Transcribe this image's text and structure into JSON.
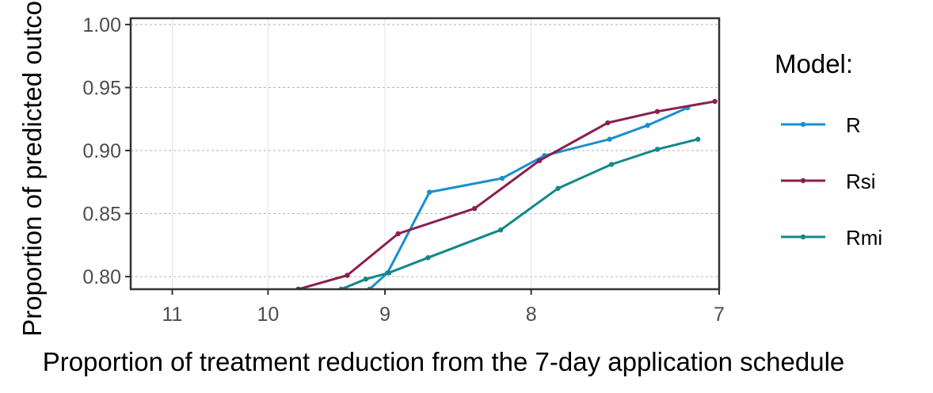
{
  "chart_data": {
    "type": "line",
    "xlabel": "Proportion of treatment reduction from the 7-day application schedule",
    "ylabel": "Proportion of predicted outcome",
    "x_scale": "reciprocal",
    "xlim": [
      11.5,
      7
    ],
    "ylim": [
      0.79,
      1.005
    ],
    "x_ticks": [
      "11",
      "10",
      "9",
      "8",
      "7"
    ],
    "y_ticks": [
      "0.80",
      "0.85",
      "0.90",
      "0.95",
      "1.00"
    ],
    "grid": true,
    "legend": {
      "title": "Model:",
      "position": "right"
    },
    "series": [
      {
        "name": "R",
        "color": "#1a8fce",
        "points": [
          [
            9.12,
            0.79
          ],
          [
            8.98,
            0.803
          ],
          [
            8.67,
            0.867
          ],
          [
            8.18,
            0.878
          ],
          [
            7.92,
            0.896
          ],
          [
            7.55,
            0.909
          ],
          [
            7.35,
            0.92
          ],
          [
            7.15,
            0.934
          ]
        ]
      },
      {
        "name": "Rsi",
        "color": "#8a1f4f",
        "points": [
          [
            9.72,
            0.79
          ],
          [
            9.3,
            0.801
          ],
          [
            8.9,
            0.834
          ],
          [
            8.36,
            0.854
          ],
          [
            7.95,
            0.892
          ],
          [
            7.56,
            0.922
          ],
          [
            7.3,
            0.931
          ],
          [
            7.02,
            0.939
          ]
        ]
      },
      {
        "name": "Rmi",
        "color": "#12888a",
        "points": [
          [
            9.35,
            0.79
          ],
          [
            9.15,
            0.798
          ],
          [
            8.97,
            0.803
          ],
          [
            8.68,
            0.815
          ],
          [
            8.19,
            0.837
          ],
          [
            7.84,
            0.87
          ],
          [
            7.54,
            0.889
          ],
          [
            7.3,
            0.901
          ],
          [
            7.1,
            0.909
          ]
        ]
      }
    ]
  }
}
